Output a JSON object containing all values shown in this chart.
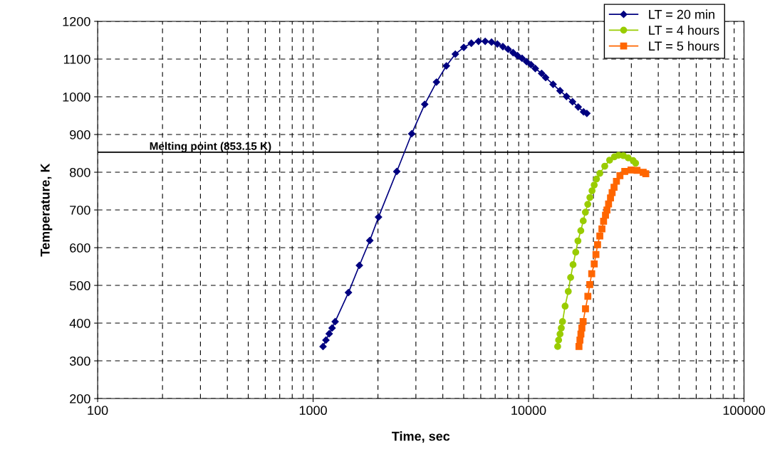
{
  "chart_data": {
    "type": "line",
    "xlabel": "Time, sec",
    "ylabel": "Temperature, K",
    "log": "x",
    "xlim": [
      100,
      100000
    ],
    "xticks": [
      100,
      1000,
      10000,
      100000
    ],
    "ylim": [
      200,
      1200
    ],
    "yticks": [
      200,
      300,
      400,
      500,
      600,
      700,
      800,
      900,
      1000,
      1100,
      1200
    ],
    "grid": true,
    "legend": "top right",
    "ref_lines": [
      {
        "axis": "y",
        "value": 853.15,
        "label": "Melting point (853.15 K)",
        "color": "#000000"
      }
    ],
    "series": [
      {
        "name": "LT = 20 min",
        "color": "#000080",
        "marker": "diamond",
        "x": [
          1112,
          1147,
          1188,
          1225,
          1266,
          1459,
          1640,
          1833,
          2012,
          2446,
          2869,
          3297,
          3738,
          4156,
          4572,
          5005,
          5425,
          5858,
          6291,
          6733,
          7163,
          7600,
          8038,
          8478,
          8890,
          9331,
          9793,
          10270,
          10750,
          11500,
          12000,
          13000,
          14000,
          15000,
          16000,
          17000,
          18000,
          18650
        ],
        "values": [
          338,
          355,
          372,
          387,
          404,
          481,
          553,
          619,
          681,
          802,
          902,
          980,
          1039,
          1082,
          1113,
          1131,
          1142,
          1147,
          1147,
          1145,
          1140,
          1133,
          1126,
          1117,
          1109,
          1102,
          1093,
          1085,
          1075,
          1062,
          1051,
          1033,
          1016,
          1001,
          987,
          973,
          960,
          956
        ]
      },
      {
        "name": "LT = 4 hours",
        "color": "#99cc00",
        "marker": "circle",
        "x": [
          13650,
          13790,
          14000,
          14190,
          14380,
          14780,
          15290,
          15680,
          16090,
          16560,
          16950,
          17480,
          17940,
          18360,
          18830,
          19260,
          19710,
          20170,
          20670,
          21420,
          22580,
          23790,
          25050,
          26180,
          27540,
          29010,
          30580,
          31400
        ],
        "values": [
          338,
          355,
          371,
          387,
          404,
          445,
          484,
          521,
          555,
          588,
          618,
          645,
          671,
          694,
          715,
          733,
          751,
          766,
          782,
          797,
          816,
          832,
          841,
          845,
          844,
          838,
          831,
          824
        ]
      },
      {
        "name": "LT = 5 hours",
        "color": "#ff6600",
        "marker": "square",
        "x": [
          17140,
          17320,
          17500,
          17680,
          17920,
          18380,
          18850,
          19240,
          19640,
          20180,
          20550,
          20910,
          21420,
          21910,
          22300,
          22760,
          23120,
          23520,
          24010,
          24430,
          24940,
          25580,
          26560,
          27960,
          29890,
          31880,
          34050,
          35000
        ],
        "values": [
          338,
          355,
          371,
          387,
          404,
          438,
          471,
          502,
          531,
          557,
          582,
          608,
          631,
          650,
          670,
          686,
          700,
          716,
          732,
          746,
          760,
          776,
          791,
          802,
          806,
          805,
          800,
          796
        ]
      }
    ]
  }
}
